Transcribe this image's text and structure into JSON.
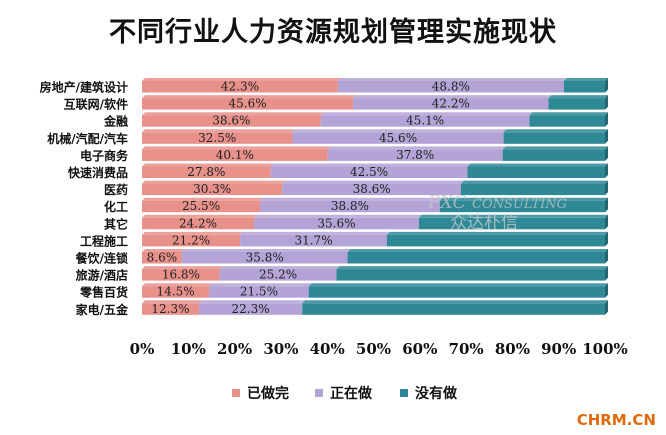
{
  "chart_data": {
    "type": "stacked-bar-horizontal",
    "title": "不同行业人力资源规划管理实施现状",
    "categories": [
      "房地产/建筑设计",
      "互联网/软件",
      "金融",
      "机械/汽配/汽车",
      "电子商务",
      "快速消费品",
      "医药",
      "化工",
      "其它",
      "工程施工",
      "餐饮/连锁",
      "旅游/酒店",
      "零售百货",
      "家电/五金"
    ],
    "series": [
      {
        "name": "已做完",
        "color": "#e8908a",
        "values": [
          42.3,
          45.6,
          38.6,
          32.5,
          40.1,
          27.8,
          30.3,
          25.5,
          24.2,
          21.2,
          8.6,
          16.8,
          14.5,
          12.3
        ]
      },
      {
        "name": "正在做",
        "color": "#b4a3d6",
        "values": [
          48.8,
          42.2,
          45.1,
          45.6,
          37.8,
          42.5,
          38.6,
          38.8,
          35.6,
          31.7,
          35.8,
          25.2,
          21.5,
          22.3
        ]
      },
      {
        "name": "没有做",
        "color": "#2e8896",
        "values": [
          8.9,
          12.2,
          16.3,
          21.9,
          22.1,
          29.7,
          31.1,
          35.7,
          40.2,
          47.1,
          55.6,
          58.0,
          64.0,
          65.4
        ]
      }
    ],
    "label_series": [
      0,
      1
    ],
    "xlim": [
      0,
      100
    ],
    "x_ticks": [
      "0%",
      "10%",
      "20%",
      "30%",
      "40%",
      "50%",
      "60%",
      "70%",
      "80%",
      "90%",
      "100%"
    ],
    "legend_position": "bottom"
  },
  "watermark": {
    "logo": "PXC",
    "tagline": "CONSULTING",
    "company": "众达朴信"
  },
  "footer": {
    "site": "CHRM.CN"
  }
}
